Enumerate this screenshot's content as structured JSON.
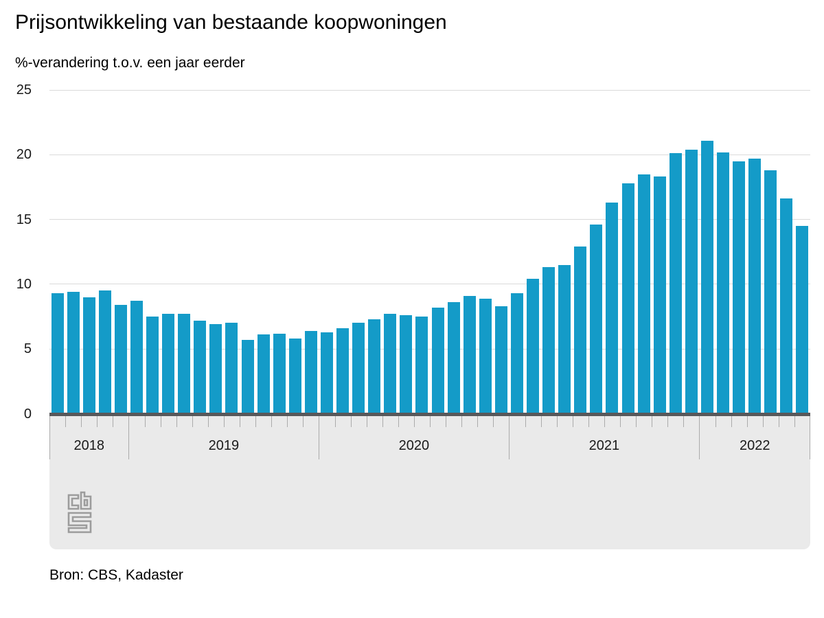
{
  "header": {
    "title": "Prijsontwikkeling van bestaande koopwoningen",
    "subtitle": "%-verandering t.o.v. een jaar eerder"
  },
  "source": "Bron: CBS, Kadaster",
  "logo_name": "cbs-logo",
  "colors": {
    "bar": "#149BC8",
    "axis_line": "#58585A",
    "gridline": "#DADADA",
    "axis_band": "#EAEAEA",
    "tick": "#ABABAB",
    "text": "#1A1A1A",
    "logo": "#9C9C9C"
  },
  "chart_data": {
    "type": "bar",
    "title": "Prijsontwikkeling van bestaande koopwoningen",
    "subtitle": "%-verandering t.o.v. een jaar eerder",
    "xlabel": "",
    "ylabel": "%-verandering t.o.v. een jaar eerder",
    "ylim": [
      0,
      25
    ],
    "yticks": [
      0,
      5,
      10,
      15,
      20,
      25
    ],
    "grid": true,
    "legend": "none",
    "x": [
      "2018-08",
      "2018-09",
      "2018-10",
      "2018-11",
      "2018-12",
      "2019-01",
      "2019-02",
      "2019-03",
      "2019-04",
      "2019-05",
      "2019-06",
      "2019-07",
      "2019-08",
      "2019-09",
      "2019-10",
      "2019-11",
      "2019-12",
      "2020-01",
      "2020-02",
      "2020-03",
      "2020-04",
      "2020-05",
      "2020-06",
      "2020-07",
      "2020-08",
      "2020-09",
      "2020-10",
      "2020-11",
      "2020-12",
      "2021-01",
      "2021-02",
      "2021-03",
      "2021-04",
      "2021-05",
      "2021-06",
      "2021-07",
      "2021-08",
      "2021-09",
      "2021-10",
      "2021-11",
      "2021-12",
      "2022-01",
      "2022-02",
      "2022-03",
      "2022-04",
      "2022-05",
      "2022-06",
      "2022-07"
    ],
    "values": [
      9.3,
      9.4,
      9.0,
      9.5,
      8.4,
      8.7,
      7.5,
      7.7,
      7.7,
      7.2,
      6.9,
      7.0,
      5.7,
      6.1,
      6.2,
      5.8,
      6.4,
      6.3,
      6.6,
      7.0,
      7.3,
      7.7,
      7.6,
      7.5,
      8.2,
      8.6,
      9.1,
      8.9,
      8.3,
      9.3,
      10.4,
      11.3,
      11.5,
      12.9,
      14.6,
      16.3,
      17.8,
      18.5,
      18.3,
      20.1,
      20.4,
      21.1,
      20.2,
      19.5,
      19.7,
      18.8,
      16.6,
      14.5
    ],
    "year_groups": [
      {
        "label": "2018",
        "months": 5
      },
      {
        "label": "2019",
        "months": 12
      },
      {
        "label": "2020",
        "months": 12
      },
      {
        "label": "2021",
        "months": 12
      },
      {
        "label": "2022",
        "months": 7
      }
    ]
  }
}
